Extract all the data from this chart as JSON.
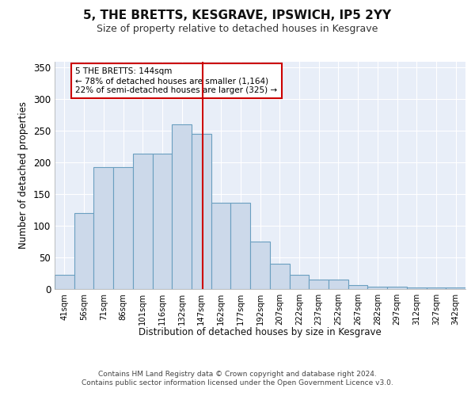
{
  "title": "5, THE BRETTS, KESGRAVE, IPSWICH, IP5 2YY",
  "subtitle": "Size of property relative to detached houses in Kesgrave",
  "xlabel": "Distribution of detached houses by size in Kesgrave",
  "ylabel": "Number of detached properties",
  "bar_color": "#ccd9ea",
  "bar_edge_color": "#6a9fc0",
  "background_color": "#e8eef8",
  "grid_color": "#ffffff",
  "annotation_line_color": "#cc0000",
  "annotation_box_color": "#ffffff",
  "annotation_box_edge": "#cc0000",
  "annotation_text": "5 THE BRETTS: 144sqm\n← 78% of detached houses are smaller (1,164)\n22% of semi-detached houses are larger (325) →",
  "footer_text": "Contains HM Land Registry data © Crown copyright and database right 2024.\nContains public sector information licensed under the Open Government Licence v3.0.",
  "categories": [
    "41sqm",
    "56sqm",
    "71sqm",
    "86sqm",
    "101sqm",
    "116sqm",
    "132sqm",
    "147sqm",
    "162sqm",
    "177sqm",
    "192sqm",
    "207sqm",
    "222sqm",
    "237sqm",
    "252sqm",
    "267sqm",
    "282sqm",
    "297sqm",
    "312sqm",
    "327sqm",
    "342sqm"
  ],
  "bar_heights": [
    22,
    120,
    193,
    193,
    214,
    214,
    260,
    246,
    136,
    136,
    75,
    40,
    23,
    15,
    15,
    6,
    4,
    4,
    3,
    3,
    3
  ],
  "bin_edges": [
    33.5,
    48.5,
    63.5,
    78.5,
    93.5,
    108.5,
    123.5,
    138.5,
    153.5,
    168.5,
    183.5,
    198.5,
    213.5,
    228.5,
    243.5,
    258.5,
    273.5,
    288.5,
    303.5,
    318.5,
    333.5,
    348.5
  ],
  "ylim": [
    0,
    360
  ],
  "yticks": [
    0,
    50,
    100,
    150,
    200,
    250,
    300,
    350
  ],
  "vline_x": 147
}
